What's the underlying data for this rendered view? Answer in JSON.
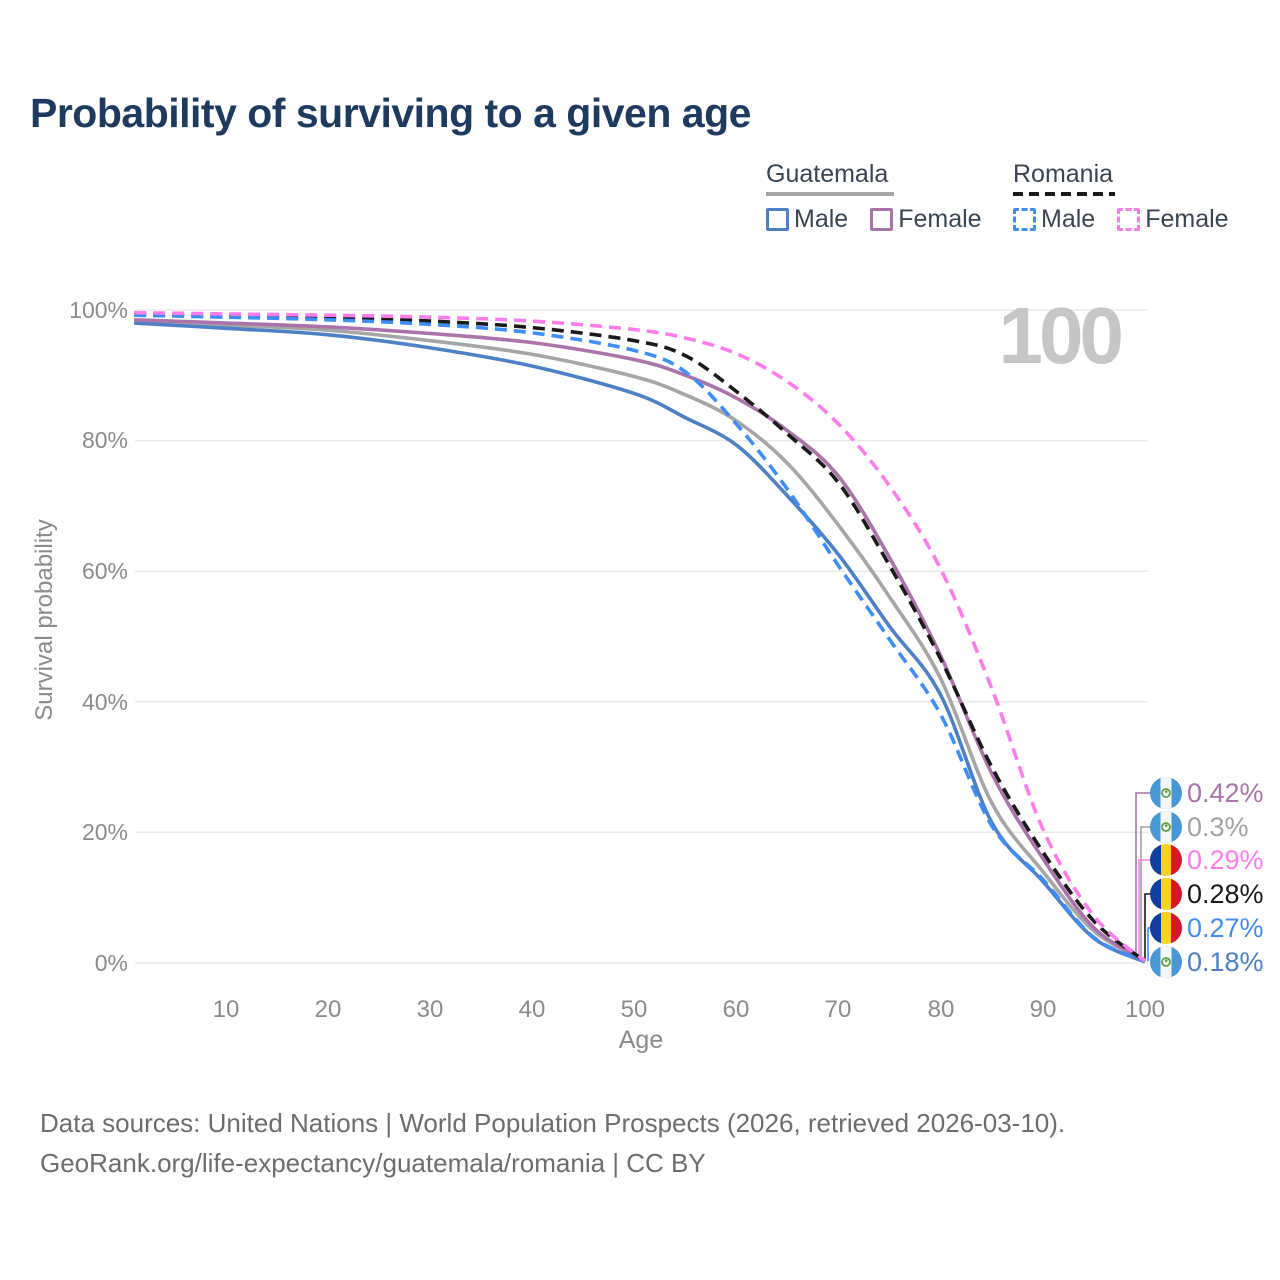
{
  "title": "Probability of surviving to a given age",
  "watermark_age": "100",
  "legend": {
    "groups": [
      {
        "country": "Guatemala",
        "items": [
          {
            "label": "Male"
          },
          {
            "label": "Female"
          }
        ]
      },
      {
        "country": "Romania",
        "items": [
          {
            "label": "Male"
          },
          {
            "label": "Female"
          }
        ]
      }
    ]
  },
  "axes": {
    "y_title": "Survival probability",
    "x_title": "Age",
    "y_tick_labels": [
      "100%",
      "80%",
      "60%",
      "40%",
      "20%",
      "0%"
    ],
    "x_tick_labels": [
      "10",
      "20",
      "30",
      "40",
      "50",
      "60",
      "70",
      "80",
      "90",
      "100"
    ]
  },
  "colors": {
    "guatemala_male": "#4d80c4",
    "guatemala_female": "#aa74aa",
    "guatemala_both": "#a6a6a6",
    "romania_male": "#3f8ef5",
    "romania_female": "#ff7dea",
    "romania_both": "#1a1a1a",
    "gridline": "#e9e9e9",
    "title_text": "#1e3a5f",
    "axis_text": "#8b8b8b",
    "watermark": "#c6c6c6",
    "footer_text": "#6d6d6d"
  },
  "end_labels": [
    {
      "value": "0.42%",
      "series": "Guatemala Female",
      "flag": "guatemala-flag-icon",
      "color": "#aa74aa"
    },
    {
      "value": "0.3%",
      "series": "Guatemala Both sexes",
      "flag": "guatemala-flag-icon",
      "color": "#a2a2a2"
    },
    {
      "value": "0.29%",
      "series": "Romania Female",
      "flag": "romania-flag-icon",
      "color": "#ff7dea"
    },
    {
      "value": "0.28%",
      "series": "Romania Both sexes",
      "flag": "romania-flag-icon",
      "color": "#1a1a1a"
    },
    {
      "value": "0.27%",
      "series": "Romania Male",
      "flag": "romania-flag-icon",
      "color": "#3f8ef5"
    },
    {
      "value": "0.18%",
      "series": "Guatemala Male",
      "flag": "guatemala-flag-icon",
      "color": "#4d80c4"
    }
  ],
  "footer": {
    "line1": "Data sources: United Nations | World Population Prospects (2026, retrieved 2026-03-10).",
    "line2": "GeoRank.org/life-expectancy/guatemala/romania | CC BY"
  },
  "chart_data": {
    "type": "line",
    "title": "Probability of surviving to a given age",
    "xlabel": "Age",
    "ylabel": "Survival probability",
    "xlim": [
      1,
      100
    ],
    "ylim": [
      0,
      100
    ],
    "x_ticks": [
      10,
      20,
      30,
      40,
      50,
      60,
      70,
      80,
      90,
      100
    ],
    "y_ticks_percent": [
      100,
      80,
      60,
      40,
      20,
      0
    ],
    "y_gridline_values": [
      100,
      80,
      60,
      40,
      20,
      0
    ],
    "grid": "horizontal-only",
    "legend_position": "top-right",
    "hover_age_indicator": 100,
    "ages": [
      1,
      10,
      20,
      30,
      40,
      50,
      55,
      60,
      65,
      70,
      75,
      80,
      85,
      90,
      95,
      100
    ],
    "series": [
      {
        "name": "Guatemala Both sexes",
        "country": "Guatemala",
        "sex": "Both",
        "line_style": "solid",
        "color": "#a6a6a6",
        "values": [
          98.3,
          97.7,
          96.9,
          95.3,
          93.2,
          89.8,
          87.0,
          83.0,
          76.5,
          67.0,
          56.0,
          43.5,
          24.5,
          14.0,
          4.9,
          0.3
        ]
      },
      {
        "name": "Guatemala Male",
        "country": "Guatemala",
        "sex": "Male",
        "line_style": "solid",
        "color": "#4d80c4",
        "values": [
          98.0,
          97.2,
          96.2,
          94.2,
          91.4,
          87.2,
          83.5,
          79.3,
          71.5,
          62.5,
          51.5,
          41.0,
          21.5,
          12.5,
          3.8,
          0.18
        ]
      },
      {
        "name": "Guatemala Female",
        "country": "Guatemala",
        "sex": "Female",
        "line_style": "solid",
        "color": "#aa74aa",
        "values": [
          98.5,
          98.0,
          97.4,
          96.4,
          95.0,
          92.4,
          90.0,
          86.5,
          81.5,
          74.5,
          62.0,
          47.0,
          29.0,
          16.0,
          5.4,
          0.42
        ]
      },
      {
        "name": "Romania Both sexes",
        "country": "Romania",
        "sex": "Both",
        "line_style": "dashed",
        "color": "#1a1a1a",
        "values": [
          99.4,
          99.1,
          98.8,
          98.3,
          97.3,
          95.3,
          93.0,
          87.5,
          81.0,
          73.5,
          60.8,
          46.5,
          30.0,
          17.0,
          6.4,
          0.28
        ]
      },
      {
        "name": "Romania Male",
        "country": "Romania",
        "sex": "Male",
        "line_style": "dashed",
        "color": "#3f8ef5",
        "values": [
          99.2,
          98.9,
          98.5,
          97.8,
          96.5,
          93.8,
          90.5,
          82.5,
          72.5,
          60.8,
          49.5,
          38.0,
          21.0,
          12.8,
          3.9,
          0.27
        ]
      },
      {
        "name": "Romania Female",
        "country": "Romania",
        "sex": "Female",
        "line_style": "dashed",
        "color": "#ff7dea",
        "values": [
          99.6,
          99.4,
          99.2,
          98.9,
          98.3,
          97.0,
          95.7,
          93.3,
          89.0,
          82.5,
          73.0,
          60.3,
          42.0,
          20.5,
          7.2,
          0.29
        ]
      }
    ],
    "end_values_at_age_100": {
      "Guatemala Female": 0.42,
      "Guatemala Both sexes": 0.3,
      "Romania Female": 0.29,
      "Romania Both sexes": 0.28,
      "Romania Male": 0.27,
      "Guatemala Male": 0.18
    }
  }
}
